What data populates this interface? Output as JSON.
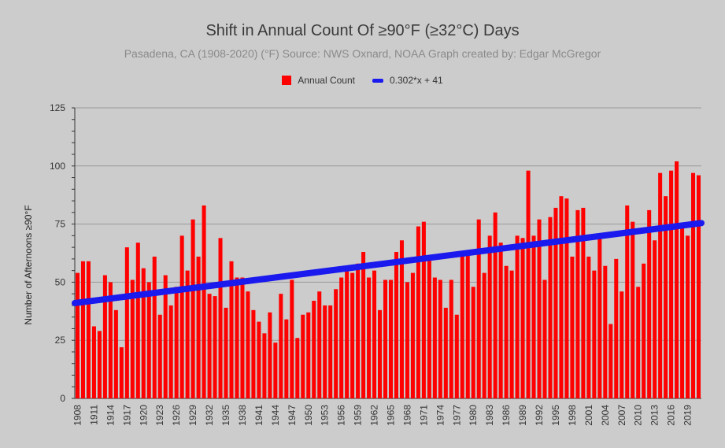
{
  "chart_data": {
    "type": "bar",
    "title": "Shift in Annual Count Of ≥90°F (≥32°C) Days",
    "subtitle": "Pasadena, CA (1908-2020) (°F) Source: NWS Oxnard, NOAA Graph created by: Edgar McGregor",
    "ylabel": "Number of Afternoons ≥90°F",
    "xlabel": "",
    "ylim": [
      0,
      125
    ],
    "yticks": [
      0,
      25,
      50,
      75,
      100,
      125
    ],
    "xtick_labels": [
      "1908",
      "1911",
      "1914",
      "1917",
      "1920",
      "1923",
      "1926",
      "1929",
      "1932",
      "1935",
      "1938",
      "1941",
      "1944",
      "1947",
      "1950",
      "1953",
      "1956",
      "1959",
      "1962",
      "1965",
      "1968",
      "1971",
      "1974",
      "1977",
      "1980",
      "1983",
      "1986",
      "1989",
      "1992",
      "1995",
      "1998",
      "2001",
      "2004",
      "2007",
      "2010",
      "2013",
      "2016",
      "2019"
    ],
    "start_year": 1908,
    "series": [
      {
        "name": "Annual Count",
        "color": "#ff0000",
        "values": [
          54,
          59,
          59,
          31,
          29,
          53,
          50,
          38,
          22,
          65,
          51,
          67,
          56,
          50,
          61,
          36,
          53,
          40,
          48,
          70,
          55,
          77,
          61,
          83,
          45,
          44,
          69,
          39,
          59,
          52,
          52,
          46,
          38,
          33,
          28,
          37,
          24,
          45,
          34,
          51,
          26,
          36,
          37,
          42,
          46,
          40,
          40,
          47,
          52,
          57,
          54,
          58,
          63,
          52,
          55,
          38,
          51,
          51,
          63,
          68,
          50,
          54,
          74,
          76,
          60,
          52,
          51,
          39,
          51,
          36,
          62,
          63,
          48,
          77,
          54,
          70,
          80,
          67,
          57,
          55,
          70,
          69,
          98,
          70,
          77,
          51,
          78,
          82,
          87,
          86,
          61,
          81,
          82,
          61,
          55,
          70,
          57,
          32,
          60,
          46,
          83,
          76,
          48,
          58,
          81,
          68,
          97,
          87,
          98,
          102,
          75,
          70,
          97,
          96
        ]
      },
      {
        "name": "0.302*x + 41",
        "color": "#1a1aee",
        "type": "trendline",
        "slope": 0.302,
        "intercept": 41
      }
    ]
  }
}
